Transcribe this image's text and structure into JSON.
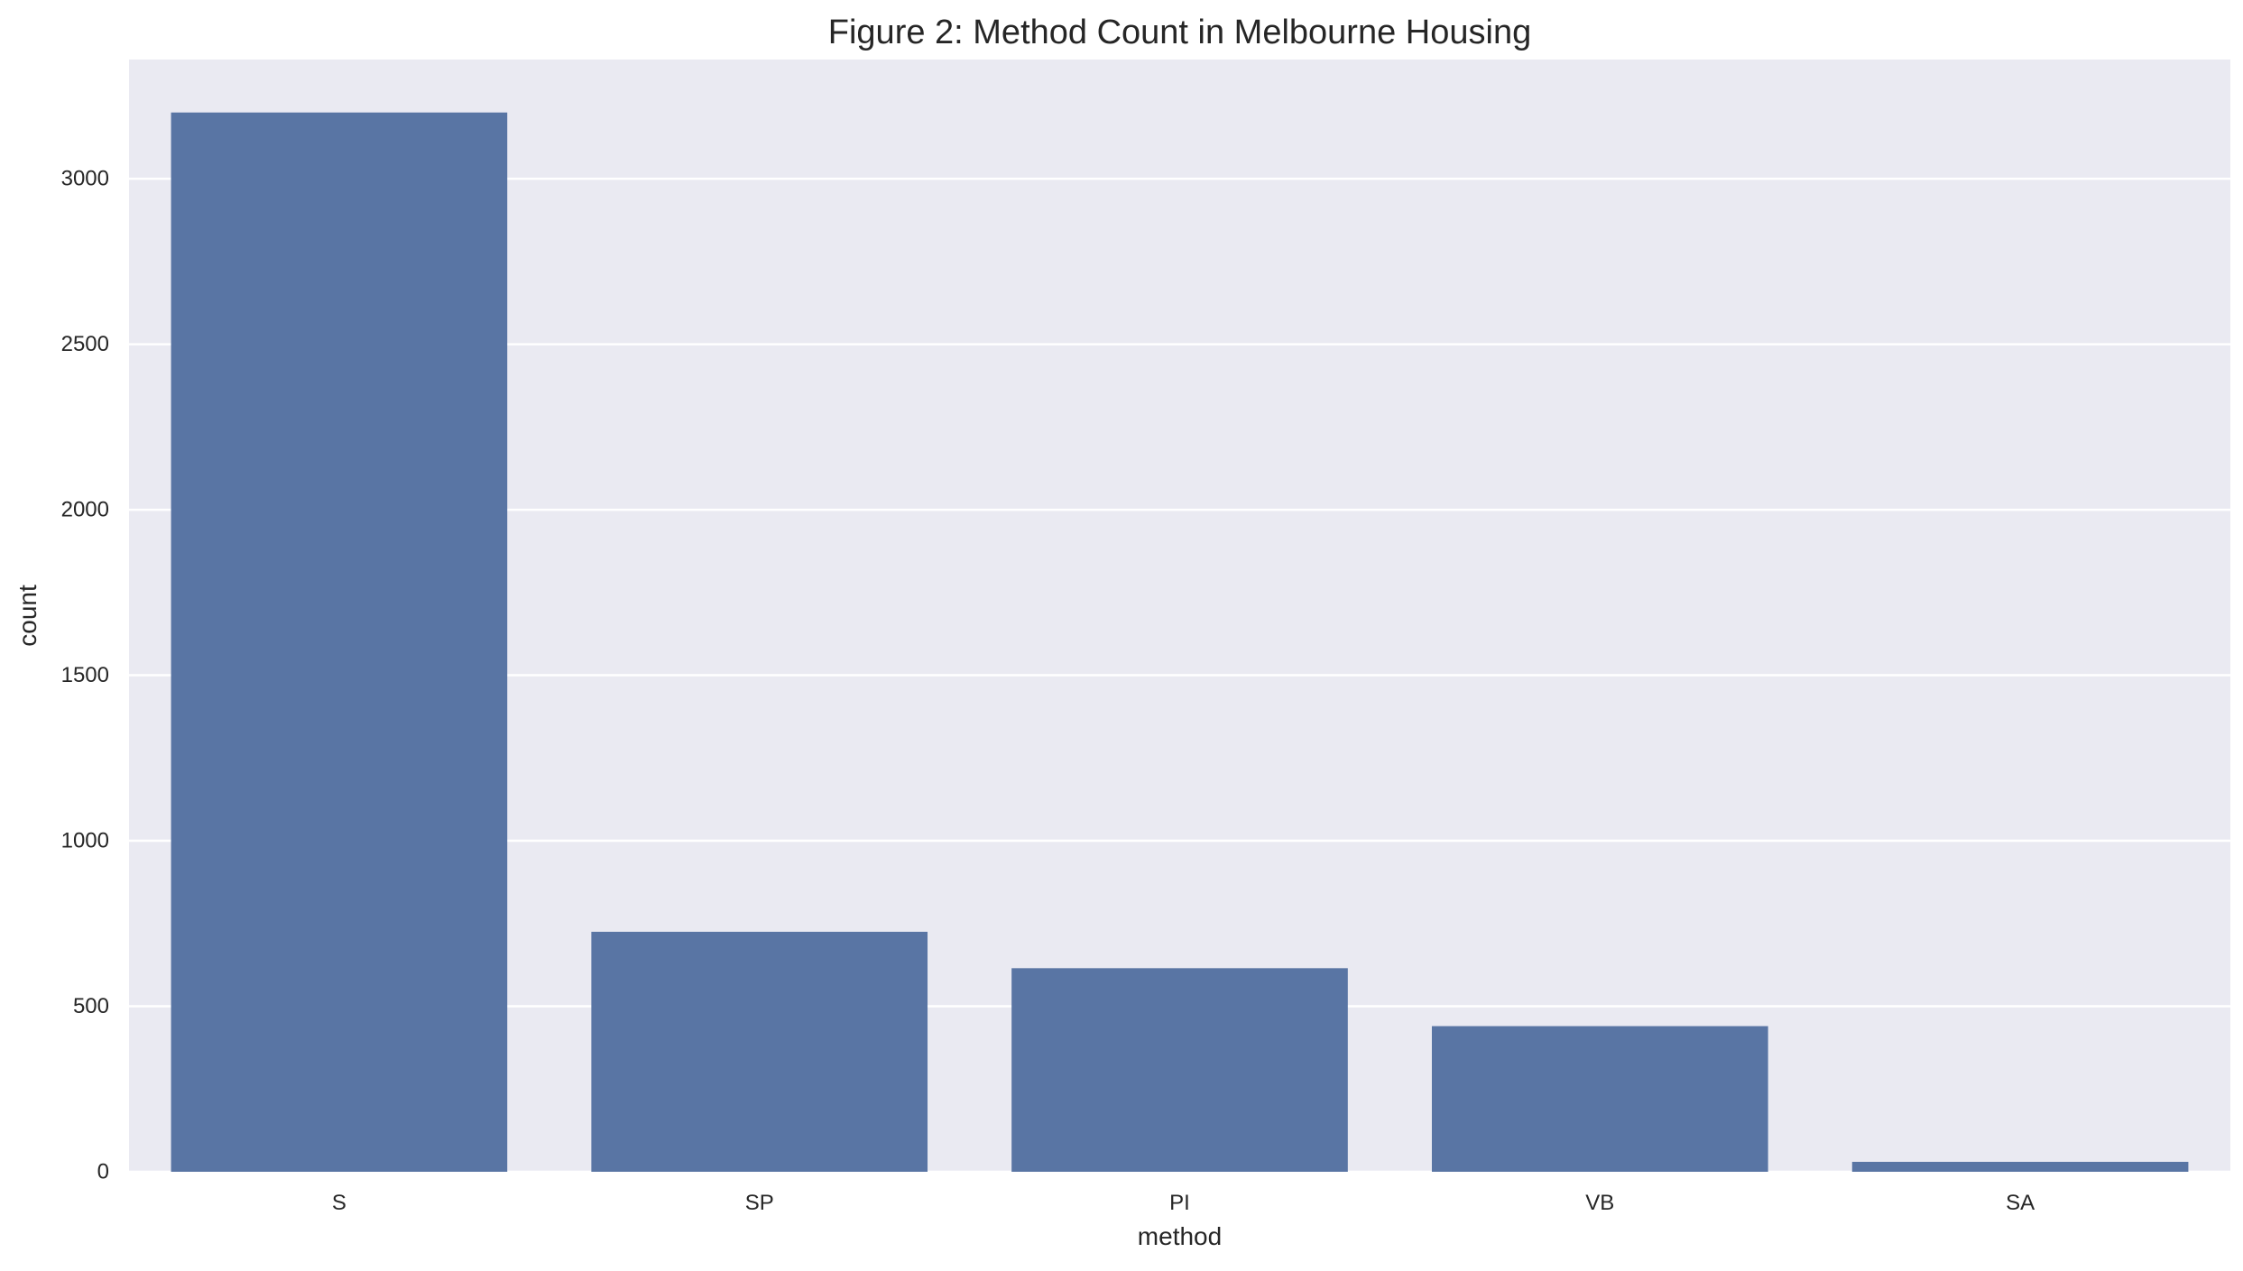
{
  "chart_data": {
    "type": "bar",
    "title": "Figure 2: Method Count in Melbourne Housing",
    "xlabel": "method",
    "ylabel": "count",
    "categories": [
      "S",
      "SP",
      "PI",
      "VB",
      "SA"
    ],
    "values": [
      3200,
      725,
      615,
      440,
      30
    ],
    "ylim": [
      0,
      3360
    ],
    "yticks": [
      0,
      500,
      1000,
      1500,
      2000,
      2500,
      3000
    ],
    "grid": true,
    "legend": "none",
    "colors": {
      "bar": "#5975a4",
      "plot_background": "#eaeaf2",
      "grid": "#ffffff",
      "text": "#262626"
    }
  }
}
